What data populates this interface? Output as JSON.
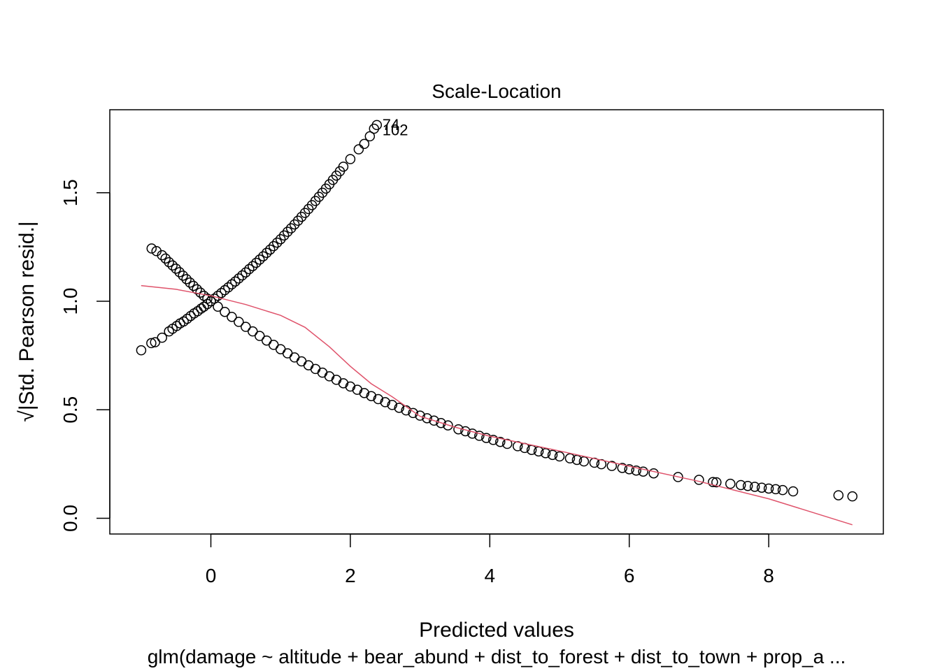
{
  "chart_data": {
    "type": "scatter",
    "title": "Scale-Location",
    "xlabel": "Predicted values",
    "ylabel": "√|Std. Pearson resid.|",
    "subtitle": "glm(damage ~ altitude + bear_abund + dist_to_forest + dist_to_town + prop_a ...",
    "xlim": [
      -1.0,
      9.2
    ],
    "ylim": [
      0.0,
      1.82
    ],
    "x_ticks": [
      "0",
      "2",
      "4",
      "6",
      "8"
    ],
    "y_ticks": [
      "0.0",
      "0.5",
      "1.0",
      "1.5"
    ],
    "grid": false,
    "colors": {
      "points": "#000000",
      "smoother": "#df536b",
      "frame": "#000000"
    },
    "series": [
      {
        "values": [
          [
            -0.999,
            0.774
          ],
          [
            -0.854,
            0.807
          ],
          [
            -0.8,
            0.811
          ],
          [
            -0.7,
            0.832
          ],
          [
            -0.6,
            0.861
          ],
          [
            -0.55,
            0.873
          ],
          [
            -0.49,
            0.886
          ],
          [
            -0.44,
            0.898
          ],
          [
            -0.39,
            0.907
          ],
          [
            -0.34,
            0.919
          ],
          [
            -0.29,
            0.932
          ],
          [
            -0.24,
            0.944
          ],
          [
            -0.19,
            0.954
          ],
          [
            -0.14,
            0.966
          ],
          [
            -0.1,
            0.975
          ],
          [
            -0.05,
            0.987
          ],
          [
            0.0,
            1.0
          ],
          [
            0.05,
            1.012
          ],
          [
            0.1,
            1.025
          ],
          [
            0.15,
            1.038
          ],
          [
            0.2,
            1.051
          ],
          [
            0.25,
            1.064
          ],
          [
            0.3,
            1.078
          ],
          [
            0.35,
            1.091
          ],
          [
            0.4,
            1.105
          ],
          [
            0.45,
            1.119
          ],
          [
            0.5,
            1.133
          ],
          [
            0.55,
            1.148
          ],
          [
            0.6,
            1.162
          ],
          [
            0.65,
            1.177
          ],
          [
            0.7,
            1.192
          ],
          [
            0.75,
            1.207
          ],
          [
            0.8,
            1.223
          ],
          [
            0.85,
            1.238
          ],
          [
            0.9,
            1.254
          ],
          [
            0.95,
            1.27
          ],
          [
            1.0,
            1.286
          ],
          [
            1.05,
            1.303
          ],
          [
            1.1,
            1.32
          ],
          [
            1.15,
            1.336
          ],
          [
            1.2,
            1.354
          ],
          [
            1.25,
            1.371
          ],
          [
            1.3,
            1.389
          ],
          [
            1.35,
            1.407
          ],
          [
            1.4,
            1.425
          ],
          [
            1.45,
            1.443
          ],
          [
            1.5,
            1.462
          ],
          [
            1.55,
            1.481
          ],
          [
            1.6,
            1.5
          ],
          [
            1.65,
            1.519
          ],
          [
            1.7,
            1.539
          ],
          [
            1.75,
            1.559
          ],
          [
            1.8,
            1.579
          ],
          [
            1.85,
            1.599
          ],
          [
            1.9,
            1.62
          ],
          [
            2.0,
            1.655
          ],
          [
            2.12,
            1.7
          ],
          [
            2.2,
            1.725
          ],
          [
            2.28,
            1.76
          ],
          [
            2.34,
            1.795
          ],
          [
            2.38,
            1.812
          ]
        ]
      },
      {
        "values": [
          [
            -0.85,
            1.243
          ],
          [
            -0.78,
            1.231
          ],
          [
            -0.7,
            1.212
          ],
          [
            -0.65,
            1.197
          ],
          [
            -0.6,
            1.18
          ],
          [
            -0.55,
            1.165
          ],
          [
            -0.5,
            1.15
          ],
          [
            -0.45,
            1.134
          ],
          [
            -0.4,
            1.118
          ],
          [
            -0.35,
            1.102
          ],
          [
            -0.3,
            1.086
          ],
          [
            -0.25,
            1.071
          ],
          [
            -0.2,
            1.055
          ],
          [
            -0.15,
            1.04
          ],
          [
            -0.1,
            1.025
          ],
          [
            -0.05,
            1.012
          ],
          [
            0.0,
            1.0
          ],
          [
            0.1,
            0.975
          ],
          [
            0.2,
            0.951
          ],
          [
            0.3,
            0.928
          ],
          [
            0.4,
            0.905
          ],
          [
            0.5,
            0.882
          ],
          [
            0.6,
            0.861
          ],
          [
            0.7,
            0.84
          ],
          [
            0.8,
            0.819
          ],
          [
            0.9,
            0.799
          ],
          [
            1.0,
            0.779
          ],
          [
            1.1,
            0.76
          ],
          [
            1.2,
            0.741
          ],
          [
            1.3,
            0.723
          ],
          [
            1.4,
            0.705
          ],
          [
            1.5,
            0.688
          ],
          [
            1.6,
            0.671
          ],
          [
            1.7,
            0.654
          ],
          [
            1.8,
            0.638
          ],
          [
            1.9,
            0.622
          ],
          [
            2.0,
            0.607
          ],
          [
            2.1,
            0.592
          ],
          [
            2.2,
            0.577
          ],
          [
            2.3,
            0.563
          ],
          [
            2.4,
            0.549
          ],
          [
            2.5,
            0.535
          ],
          [
            2.6,
            0.522
          ],
          [
            2.7,
            0.509
          ],
          [
            2.8,
            0.497
          ],
          [
            2.9,
            0.485
          ],
          [
            3.0,
            0.473
          ],
          [
            3.1,
            0.461
          ],
          [
            3.2,
            0.45
          ],
          [
            3.3,
            0.439
          ],
          [
            3.4,
            0.428
          ],
          [
            3.55,
            0.41
          ],
          [
            3.65,
            0.401
          ],
          [
            3.75,
            0.39
          ],
          [
            3.85,
            0.38
          ],
          [
            3.95,
            0.37
          ],
          [
            4.05,
            0.361
          ],
          [
            4.15,
            0.352
          ],
          [
            4.25,
            0.343
          ],
          [
            4.4,
            0.332
          ],
          [
            4.5,
            0.324
          ],
          [
            4.6,
            0.315
          ],
          [
            4.7,
            0.308
          ],
          [
            4.8,
            0.3
          ],
          [
            4.9,
            0.292
          ],
          [
            5.0,
            0.285
          ],
          [
            5.15,
            0.276
          ],
          [
            5.25,
            0.269
          ],
          [
            5.35,
            0.262
          ],
          [
            5.5,
            0.256
          ],
          [
            5.6,
            0.249
          ],
          [
            5.75,
            0.241
          ],
          [
            5.9,
            0.232
          ],
          [
            6.0,
            0.226
          ],
          [
            6.1,
            0.22
          ],
          [
            6.2,
            0.215
          ],
          [
            6.35,
            0.207
          ],
          [
            6.7,
            0.19
          ],
          [
            7.0,
            0.177
          ],
          [
            7.2,
            0.167
          ],
          [
            7.25,
            0.166
          ],
          [
            7.45,
            0.159
          ],
          [
            7.6,
            0.153
          ],
          [
            7.7,
            0.149
          ],
          [
            7.8,
            0.145
          ],
          [
            7.9,
            0.141
          ],
          [
            8.0,
            0.137
          ],
          [
            8.1,
            0.134
          ],
          [
            8.2,
            0.13
          ],
          [
            8.35,
            0.124
          ],
          [
            9.0,
            0.106
          ],
          [
            9.2,
            0.101
          ]
        ]
      }
    ],
    "smoother": [
      [
        -1.0,
        1.072
      ],
      [
        -0.5,
        1.055
      ],
      [
        0.0,
        1.025
      ],
      [
        0.5,
        0.985
      ],
      [
        1.0,
        0.935
      ],
      [
        1.35,
        0.88
      ],
      [
        1.7,
        0.79
      ],
      [
        2.0,
        0.7
      ],
      [
        2.3,
        0.62
      ],
      [
        2.6,
        0.56
      ],
      [
        3.0,
        0.47
      ],
      [
        3.5,
        0.42
      ],
      [
        4.0,
        0.378
      ],
      [
        5.0,
        0.31
      ],
      [
        6.0,
        0.24
      ],
      [
        7.0,
        0.17
      ],
      [
        8.0,
        0.09
      ],
      [
        9.2,
        -0.03
      ]
    ],
    "annotations": [
      {
        "text": "74",
        "x": 2.4,
        "y": 1.815
      },
      {
        "text": "102",
        "x": 2.4,
        "y": 1.79
      }
    ]
  }
}
